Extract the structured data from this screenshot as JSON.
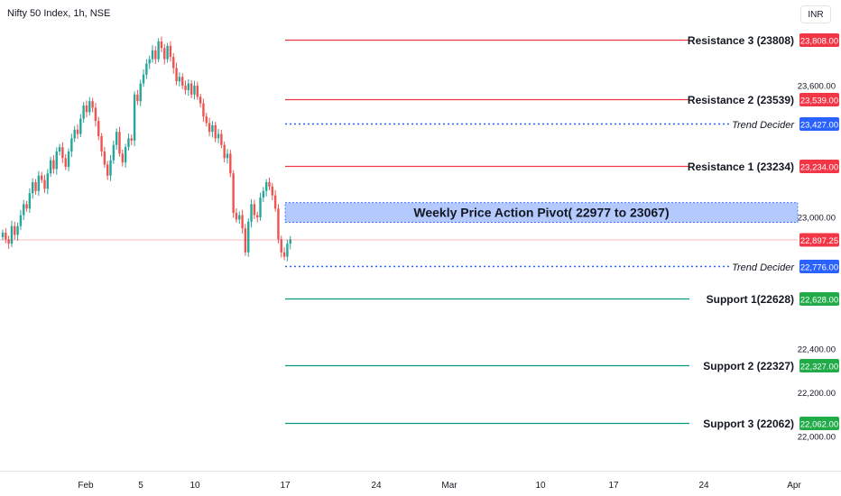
{
  "header": {
    "symbol": "Nifty 50 Index, 1h, NSE",
    "currency": "INR"
  },
  "colors": {
    "bull": "#26a69a",
    "bear": "#ef5350",
    "resistance": "#f23645",
    "support": "#089981",
    "trend": "#2962ff",
    "pivot_fill": "#9bb8ff",
    "last_price": "#f23645"
  },
  "chart_data": {
    "type": "candlestick",
    "title": "Nifty 50 Index, 1h, NSE",
    "y_axis_ticks": [
      "23,600.00",
      "23,000.00",
      "22,400.00",
      "22,200.00",
      "22,000.00"
    ],
    "y_tick_values": [
      23600,
      23000,
      22400,
      22200,
      22000
    ],
    "x_axis_ticks": [
      "Feb",
      "5",
      "10",
      "17",
      "24",
      "Mar",
      "10",
      "17",
      "24",
      "Apr"
    ],
    "ylim": [
      21940,
      23920
    ],
    "last_price": {
      "value": 22897.25,
      "label": "22,897.25"
    },
    "levels": [
      {
        "name": "Resistance 3 (23808)",
        "value": 23808,
        "label": "23,808.00",
        "kind": "resistance"
      },
      {
        "name": "Resistance 2 (23539)",
        "value": 23539,
        "label": "23,539.00",
        "kind": "resistance"
      },
      {
        "name": "Trend Decider",
        "value": 23427,
        "label": "23,427.00",
        "kind": "trend"
      },
      {
        "name": "Resistance 1 (23234)",
        "value": 23234,
        "label": "23,234.00",
        "kind": "resistance"
      },
      {
        "name": "Trend Decider",
        "value": 22776,
        "label": "22,776.00",
        "kind": "trend"
      },
      {
        "name": "Support 1(22628)",
        "value": 22628,
        "label": "22,628.00",
        "kind": "support"
      },
      {
        "name": "Support 2 (22327)",
        "value": 22327,
        "label": "22,327.00",
        "kind": "support"
      },
      {
        "name": "Support 3 (22062)",
        "value": 22062,
        "label": "22,062.00",
        "kind": "support"
      }
    ],
    "pivot_zone": {
      "label": "Weekly Price Action Pivot( 22977 to 23067)",
      "low": 22977,
      "high": 23067
    },
    "candle_closes": [
      22930,
      22900,
      22880,
      22960,
      22920,
      22960,
      23010,
      23060,
      23040,
      23110,
      23160,
      23120,
      23190,
      23170,
      23130,
      23200,
      23260,
      23220,
      23300,
      23320,
      23270,
      23230,
      23300,
      23360,
      23400,
      23380,
      23450,
      23510,
      23480,
      23530,
      23500,
      23440,
      23370,
      23300,
      23240,
      23190,
      23260,
      23330,
      23390,
      23290,
      23250,
      23320,
      23360,
      23350,
      23560,
      23530,
      23610,
      23650,
      23700,
      23720,
      23760,
      23720,
      23800,
      23770,
      23720,
      23780,
      23730,
      23680,
      23620,
      23640,
      23600,
      23580,
      23610,
      23560,
      23600,
      23550,
      23520,
      23460,
      23430,
      23390,
      23420,
      23360,
      23380,
      23330,
      23270,
      23290,
      23200,
      23020,
      22990,
      23010,
      22950,
      22840,
      22980,
      23060,
      23010,
      23000,
      23090,
      23120,
      23160,
      23140,
      23100,
      23040,
      22900,
      22840,
      22820,
      22880,
      22900
    ]
  }
}
